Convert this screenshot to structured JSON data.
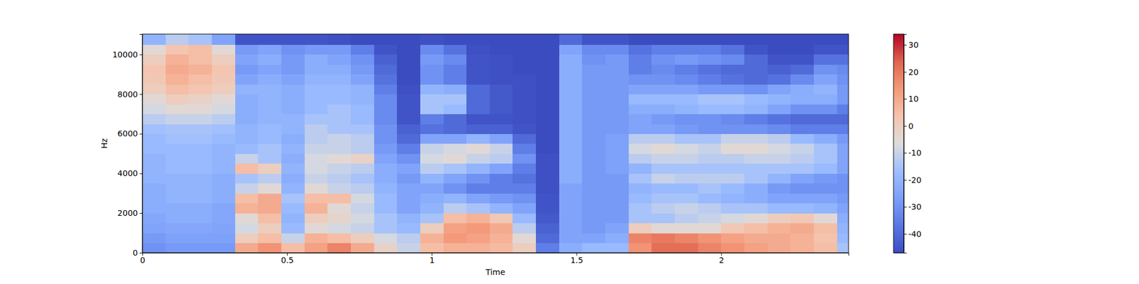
{
  "chart_data": {
    "type": "heatmap",
    "x_label": "Time",
    "y_label": "Hz",
    "xlim": [
      0,
      2.44
    ],
    "ylim": [
      0,
      11025
    ],
    "xticks": [
      0,
      0.5,
      1,
      1.5,
      2
    ],
    "yticks": [
      0,
      2000,
      4000,
      6000,
      8000,
      10000
    ],
    "x_bins": [
      0,
      0.08,
      0.16,
      0.24,
      0.32,
      0.4,
      0.48,
      0.56,
      0.64,
      0.72,
      0.8,
      0.88,
      0.96,
      1.04,
      1.12,
      1.2,
      1.28,
      1.36,
      1.44,
      1.52,
      1.6,
      1.68,
      1.76,
      1.84,
      1.92,
      2,
      2.08,
      2.16,
      2.24,
      2.32,
      2.4,
      2.44
    ],
    "y_bins": [
      0,
      500,
      1000,
      1500,
      2000,
      2500,
      3000,
      3500,
      4000,
      4500,
      5000,
      5500,
      6000,
      6500,
      7000,
      7500,
      8000,
      8500,
      9000,
      9500,
      10000,
      10500,
      11025
    ],
    "cells": [
      [
        -30,
        -28,
        -28,
        -28,
        10,
        15,
        5,
        12,
        18,
        10,
        -2,
        -10,
        5,
        8,
        8,
        6,
        0,
        -35,
        -22,
        -18,
        -18,
        15,
        22,
        22,
        18,
        15,
        12,
        10,
        8,
        5,
        -15
      ],
      [
        -28,
        -26,
        -26,
        -26,
        0,
        5,
        -10,
        8,
        5,
        0,
        -8,
        -12,
        8,
        14,
        12,
        8,
        -5,
        -40,
        -25,
        -25,
        -22,
        18,
        20,
        18,
        15,
        12,
        10,
        10,
        8,
        4,
        -18
      ],
      [
        -25,
        -24,
        -24,
        -25,
        -8,
        0,
        -18,
        -5,
        -8,
        -10,
        -15,
        -18,
        0,
        12,
        14,
        10,
        -12,
        -42,
        -25,
        -28,
        -25,
        0,
        -5,
        -5,
        -5,
        2,
        5,
        8,
        10,
        5,
        -20
      ],
      [
        -24,
        -22,
        -22,
        -24,
        -5,
        5,
        -20,
        0,
        -3,
        -8,
        -15,
        -20,
        -15,
        5,
        8,
        2,
        -18,
        -44,
        -25,
        -28,
        -28,
        -15,
        -15,
        -12,
        -10,
        -8,
        -5,
        0,
        2,
        -5,
        -22
      ],
      [
        -22,
        -22,
        -22,
        -24,
        8,
        10,
        -18,
        8,
        -5,
        -10,
        -18,
        -25,
        -20,
        -12,
        -15,
        -20,
        -25,
        -45,
        -25,
        -28,
        -28,
        -15,
        -12,
        -10,
        -12,
        -15,
        -15,
        -18,
        -18,
        -20,
        -25
      ],
      [
        -22,
        -20,
        -20,
        -22,
        5,
        10,
        -15,
        5,
        5,
        -8,
        -18,
        -25,
        -22,
        -20,
        -25,
        -28,
        -30,
        -45,
        -25,
        -28,
        -28,
        -18,
        -15,
        -15,
        -18,
        -20,
        -22,
        -25,
        -25,
        -25,
        -28
      ],
      [
        -22,
        -20,
        -20,
        -22,
        -10,
        -5,
        -20,
        -5,
        -10,
        -12,
        -20,
        -25,
        -25,
        -30,
        -35,
        -35,
        -35,
        -46,
        -25,
        -28,
        -28,
        -20,
        -18,
        -18,
        -15,
        -18,
        -22,
        -28,
        -30,
        -30,
        -30
      ],
      [
        -20,
        -20,
        -20,
        -22,
        -15,
        -12,
        -22,
        -10,
        -12,
        -15,
        -22,
        -28,
        -20,
        -25,
        -30,
        -35,
        -38,
        -46,
        -22,
        -28,
        -28,
        -15,
        -10,
        -12,
        -12,
        -12,
        -15,
        -20,
        -25,
        -28,
        -30
      ],
      [
        -20,
        -18,
        -18,
        -20,
        5,
        0,
        -20,
        -8,
        -10,
        -12,
        -22,
        -25,
        -12,
        -15,
        -20,
        -25,
        -35,
        -46,
        -22,
        -28,
        -26,
        -20,
        -15,
        -15,
        -15,
        -15,
        -15,
        -15,
        -15,
        -18,
        -25
      ],
      [
        -20,
        -18,
        -18,
        -20,
        -10,
        -15,
        -22,
        -8,
        -5,
        -2,
        -25,
        -30,
        -8,
        -5,
        -10,
        -12,
        -30,
        -46,
        -22,
        -28,
        -26,
        -12,
        -10,
        -10,
        -12,
        -12,
        -10,
        -10,
        -12,
        -15,
        -25
      ],
      [
        -18,
        -18,
        -18,
        -20,
        -18,
        -15,
        -20,
        -10,
        -10,
        -12,
        -28,
        -35,
        -10,
        -8,
        -5,
        -10,
        -35,
        -47,
        -22,
        -28,
        -26,
        -8,
        -5,
        -8,
        -10,
        -5,
        -5,
        -8,
        -10,
        -15,
        -25
      ],
      [
        -18,
        -16,
        -16,
        -18,
        -20,
        -18,
        -22,
        -12,
        -10,
        -12,
        -30,
        -40,
        -25,
        -25,
        -20,
        -25,
        -40,
        -47,
        -22,
        -28,
        -26,
        -12,
        -12,
        -15,
        -15,
        -10,
        -10,
        -12,
        -18,
        -22,
        -28
      ],
      [
        -16,
        -15,
        -15,
        -16,
        -20,
        -18,
        -20,
        -12,
        -15,
        -15,
        -30,
        -42,
        -38,
        -40,
        -42,
        -42,
        -45,
        -47,
        -22,
        -28,
        -28,
        -25,
        -25,
        -28,
        -30,
        -30,
        -30,
        -32,
        -35,
        -35,
        -35
      ],
      [
        -12,
        -10,
        -10,
        -12,
        -22,
        -20,
        -20,
        -15,
        -15,
        -18,
        -32,
        -45,
        -35,
        -40,
        -45,
        -45,
        -46,
        -47,
        -22,
        -28,
        -28,
        -25,
        -28,
        -30,
        -30,
        -32,
        -35,
        -38,
        -40,
        -40,
        -40
      ],
      [
        -8,
        -5,
        -5,
        -8,
        -22,
        -20,
        -22,
        -18,
        -15,
        -18,
        -32,
        -45,
        -15,
        -18,
        -40,
        -44,
        -46,
        -47,
        -22,
        -28,
        -28,
        -22,
        -22,
        -20,
        -18,
        -18,
        -20,
        -25,
        -30,
        -30,
        -35
      ],
      [
        -5,
        0,
        -2,
        -5,
        -22,
        -20,
        -22,
        -18,
        -18,
        -20,
        -32,
        -45,
        -15,
        -15,
        -40,
        -44,
        -46,
        -47,
        -22,
        -28,
        -28,
        -18,
        -18,
        -18,
        -15,
        -15,
        -18,
        -20,
        -22,
        -22,
        -28
      ],
      [
        0,
        5,
        3,
        0,
        -20,
        -20,
        -22,
        -18,
        -18,
        -20,
        -35,
        -46,
        -20,
        -22,
        -40,
        -44,
        -46,
        -47,
        -22,
        -28,
        -28,
        -25,
        -25,
        -25,
        -28,
        -28,
        -30,
        -25,
        -22,
        -20,
        -28
      ],
      [
        2,
        8,
        5,
        2,
        -25,
        -22,
        -25,
        -20,
        -20,
        -25,
        -38,
        -47,
        -30,
        -35,
        -45,
        -46,
        -46,
        -47,
        -22,
        -28,
        -28,
        -30,
        -30,
        -32,
        -35,
        -38,
        -40,
        -38,
        -32,
        -25,
        -30
      ],
      [
        3,
        10,
        8,
        3,
        -28,
        -25,
        -28,
        -22,
        -22,
        -28,
        -40,
        -47,
        -30,
        -35,
        -45,
        -46,
        -47,
        -47,
        -22,
        -28,
        -28,
        -35,
        -32,
        -35,
        -38,
        -40,
        -40,
        -42,
        -40,
        -30,
        -32
      ],
      [
        0,
        8,
        5,
        0,
        -25,
        -22,
        -28,
        -22,
        -25,
        -30,
        -42,
        -47,
        -28,
        -32,
        -45,
        -46,
        -47,
        -47,
        -22,
        -30,
        -28,
        -35,
        -30,
        -28,
        -30,
        -32,
        -40,
        -45,
        -45,
        -38,
        -38
      ],
      [
        -5,
        3,
        5,
        -5,
        -28,
        -25,
        -30,
        -28,
        -28,
        -35,
        -45,
        -47,
        -32,
        -38,
        -46,
        -47,
        -47,
        -47,
        -25,
        -32,
        -32,
        -38,
        -35,
        -35,
        -35,
        -38,
        -45,
        -47,
        -47,
        -45,
        -45
      ],
      [
        -20,
        -12,
        -15,
        -25,
        -45,
        -45,
        -45,
        -45,
        -46,
        -47,
        -47,
        -47,
        -46,
        -47,
        -47,
        -47,
        -47,
        -47,
        -40,
        -45,
        -45,
        -47,
        -47,
        -47,
        -47,
        -47,
        -47,
        -47,
        -47,
        -47,
        -47
      ]
    ],
    "colorbar": {
      "range": [
        -47,
        34
      ],
      "ticks": [
        -40,
        -30,
        -20,
        -10,
        0,
        10,
        20,
        30
      ]
    }
  }
}
